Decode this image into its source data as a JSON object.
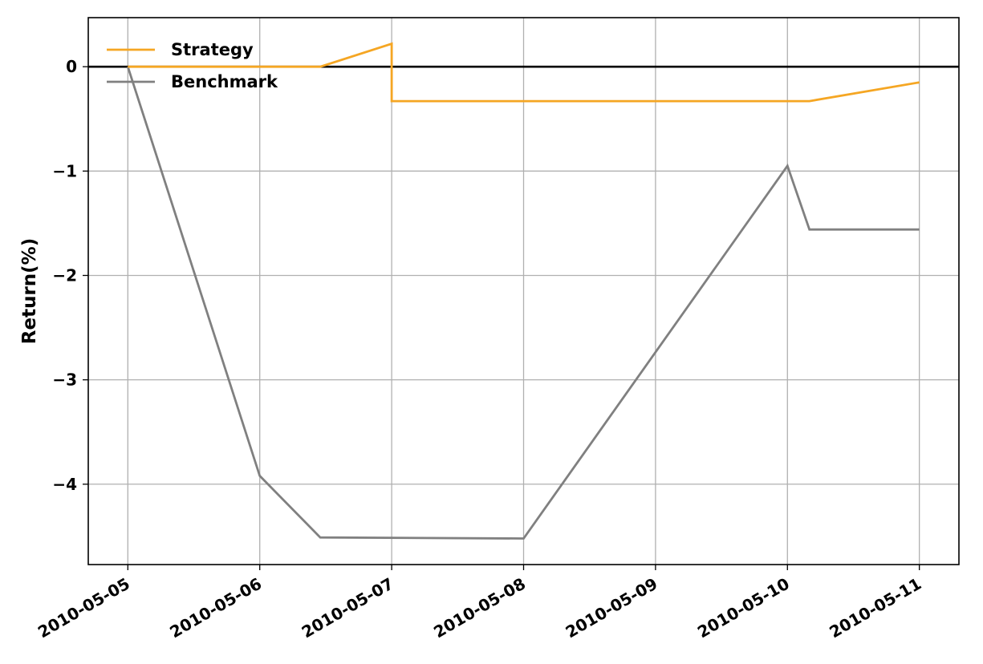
{
  "chart_data": {
    "type": "line",
    "ylabel": "Return(%)",
    "xlabel": "",
    "ylim": [
      -4.77,
      0.47
    ],
    "x_ticks": [
      "2010-05-05",
      "2010-05-06",
      "2010-05-07",
      "2010-05-08",
      "2010-05-09",
      "2010-05-10",
      "2010-05-11"
    ],
    "y_ticks": [
      0,
      -1,
      -2,
      -3,
      -4
    ],
    "grid": true,
    "legend_position": "top-left",
    "zero_line": 0,
    "series": [
      {
        "name": "Strategy",
        "color": "#F5A623",
        "x": [
          "2010-05-05",
          "2010-05-06",
          "2010-05-06 11:00",
          "2010-05-07",
          "2010-05-07",
          "2010-05-10 04:00",
          "2010-05-11"
        ],
        "y": [
          0,
          0,
          0,
          0.22,
          -0.33,
          -0.33,
          -0.15
        ]
      },
      {
        "name": "Benchmark",
        "color": "#808080",
        "x": [
          "2010-05-05",
          "2010-05-06",
          "2010-05-06 11:00",
          "2010-05-08",
          "2010-05-10",
          "2010-05-10 04:00",
          "2010-05-11"
        ],
        "y": [
          0,
          -3.92,
          -4.51,
          -4.52,
          -0.95,
          -1.56,
          -1.56
        ]
      }
    ]
  }
}
